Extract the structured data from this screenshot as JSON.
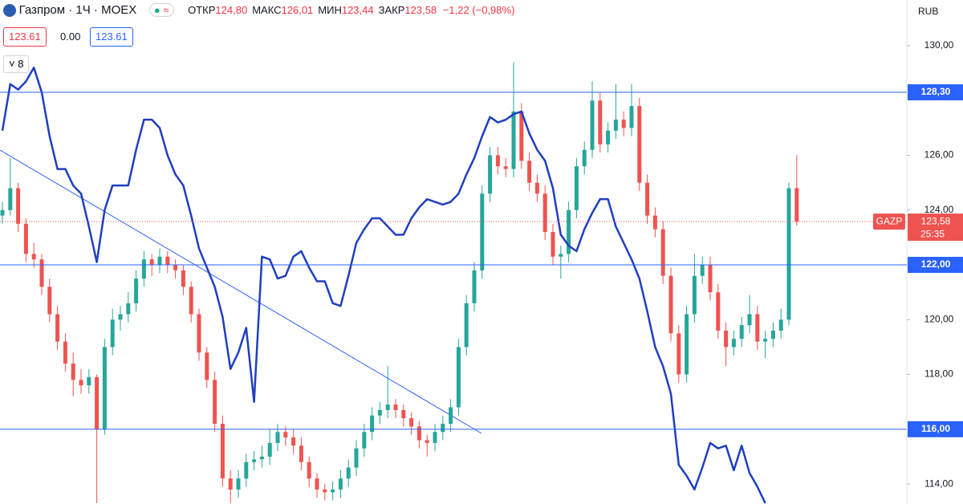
{
  "chart_data": {
    "type": "candlestick",
    "symbol": "Газпром · 1Ч · MOEX",
    "ohlc_legend": [
      {
        "label": "ОТКР",
        "value": "124,80"
      },
      {
        "label": "МАКС",
        "value": "126,01"
      },
      {
        "label": "МИН",
        "value": "123,44"
      },
      {
        "label": "ЗАКР",
        "value": "123,58"
      }
    ],
    "change": "−1,22 (−0,98%)",
    "bid": "123.61",
    "spread": "0.00",
    "ask": "123.61",
    "indicators_count": "8",
    "currency": "RUB",
    "symbol_tag": "GAZP",
    "countdown": "25:35",
    "last_price": {
      "value": 123.58,
      "label": "123,58"
    },
    "up_color": "#26a69a",
    "down_color": "#ef5350",
    "ylim": [
      113.27,
      131.67
    ],
    "yticks": [
      {
        "value": 114,
        "label": "114,00"
      },
      {
        "value": 118,
        "label": "118,00"
      },
      {
        "value": 120,
        "label": "120,00"
      },
      {
        "value": 124,
        "label": "124,00"
      },
      {
        "value": 126,
        "label": "126,00"
      },
      {
        "value": 130,
        "label": "130,00"
      }
    ],
    "levels": [
      {
        "value": 128.3,
        "label": "128,30"
      },
      {
        "value": 122,
        "label": "122,00"
      },
      {
        "value": 116,
        "label": "116,00"
      }
    ],
    "level_color": "#2962ff",
    "candles": [
      [
        123.8,
        124.3,
        123.5,
        124.0
      ],
      [
        124.0,
        125.9,
        123.8,
        124.8
      ],
      [
        124.8,
        125.0,
        123.2,
        123.5
      ],
      [
        123.5,
        123.7,
        122.1,
        122.4
      ],
      [
        122.4,
        122.8,
        121.9,
        122.2
      ],
      [
        122.2,
        122.4,
        120.9,
        121.2
      ],
      [
        121.2,
        121.5,
        119.9,
        120.2
      ],
      [
        120.2,
        120.5,
        118.9,
        119.2
      ],
      [
        119.2,
        119.5,
        118.1,
        118.4
      ],
      [
        118.4,
        118.8,
        117.2,
        117.8
      ],
      [
        117.8,
        118.2,
        117.3,
        117.6
      ],
      [
        117.6,
        118.2,
        117.3,
        117.9
      ],
      [
        117.9,
        118.0,
        113.3,
        116.0
      ],
      [
        116.0,
        119.3,
        115.8,
        119.0
      ],
      [
        119.0,
        120.4,
        118.7,
        120.0
      ],
      [
        120.0,
        120.5,
        119.6,
        120.2
      ],
      [
        120.2,
        121.0,
        119.9,
        120.6
      ],
      [
        120.6,
        121.8,
        120.3,
        121.5
      ],
      [
        121.5,
        122.5,
        121.2,
        122.2
      ],
      [
        122.2,
        122.4,
        121.6,
        122.0
      ],
      [
        122.0,
        122.6,
        121.7,
        122.3
      ],
      [
        122.3,
        122.5,
        121.7,
        122.0
      ],
      [
        122.0,
        122.2,
        121.5,
        121.8
      ],
      [
        121.8,
        122.0,
        120.9,
        121.2
      ],
      [
        121.2,
        121.4,
        119.9,
        120.2
      ],
      [
        120.2,
        120.4,
        118.5,
        118.8
      ],
      [
        118.8,
        119.0,
        117.5,
        117.8
      ],
      [
        117.8,
        118.1,
        115.9,
        116.2
      ],
      [
        116.2,
        116.5,
        113.9,
        114.2
      ],
      [
        114.2,
        114.5,
        113.3,
        113.8
      ],
      [
        113.8,
        114.5,
        113.5,
        114.2
      ],
      [
        114.2,
        115.1,
        113.9,
        114.8
      ],
      [
        114.8,
        115.2,
        114.5,
        114.9
      ],
      [
        114.9,
        115.4,
        114.6,
        115.0
      ],
      [
        115.0,
        116.0,
        114.7,
        115.5
      ],
      [
        115.5,
        116.2,
        115.2,
        115.9
      ],
      [
        115.9,
        116.1,
        115.4,
        115.7
      ],
      [
        115.7,
        116.0,
        115.1,
        115.4
      ],
      [
        115.4,
        115.7,
        114.5,
        114.8
      ],
      [
        114.8,
        115.0,
        113.9,
        114.2
      ],
      [
        114.2,
        114.4,
        113.5,
        113.8
      ],
      [
        113.8,
        114.0,
        113.4,
        113.7
      ],
      [
        113.7,
        114.1,
        113.4,
        113.8
      ],
      [
        113.8,
        114.5,
        113.5,
        114.2
      ],
      [
        114.2,
        114.9,
        113.9,
        114.6
      ],
      [
        114.6,
        115.6,
        114.3,
        115.3
      ],
      [
        115.3,
        116.2,
        115.0,
        115.9
      ],
      [
        115.9,
        116.8,
        115.6,
        116.5
      ],
      [
        116.5,
        117.0,
        116.2,
        116.7
      ],
      [
        116.7,
        118.3,
        116.4,
        116.9
      ],
      [
        116.9,
        117.1,
        116.4,
        116.7
      ],
      [
        116.7,
        116.9,
        116.1,
        116.4
      ],
      [
        116.4,
        116.6,
        115.8,
        116.1
      ],
      [
        116.1,
        116.3,
        115.3,
        115.6
      ],
      [
        115.6,
        115.8,
        115.0,
        115.5
      ],
      [
        115.5,
        116.2,
        115.2,
        115.9
      ],
      [
        115.9,
        116.5,
        115.6,
        116.2
      ],
      [
        116.2,
        117.1,
        115.9,
        116.8
      ],
      [
        116.8,
        119.3,
        116.5,
        119.0
      ],
      [
        119.0,
        120.9,
        118.7,
        120.6
      ],
      [
        120.6,
        122.1,
        120.3,
        121.8
      ],
      [
        121.8,
        124.9,
        121.5,
        124.6
      ],
      [
        124.6,
        126.3,
        124.3,
        126.0
      ],
      [
        126.0,
        126.3,
        125.3,
        125.6
      ],
      [
        125.6,
        125.9,
        125.2,
        125.5
      ],
      [
        125.5,
        129.4,
        125.2,
        127.6
      ],
      [
        127.6,
        127.9,
        125.5,
        125.8
      ],
      [
        125.8,
        126.1,
        124.7,
        125.0
      ],
      [
        125.0,
        125.3,
        124.3,
        124.6
      ],
      [
        124.6,
        124.9,
        122.9,
        123.2
      ],
      [
        123.2,
        123.5,
        122.0,
        122.3
      ],
      [
        122.3,
        122.7,
        121.5,
        122.4
      ],
      [
        122.4,
        124.3,
        122.1,
        124.0
      ],
      [
        124.0,
        125.9,
        123.7,
        125.6
      ],
      [
        125.6,
        126.5,
        125.3,
        126.2
      ],
      [
        126.2,
        128.7,
        125.9,
        128.0
      ],
      [
        128.0,
        128.3,
        126.1,
        126.4
      ],
      [
        126.4,
        127.2,
        126.1,
        126.9
      ],
      [
        126.9,
        128.6,
        126.6,
        127.3
      ],
      [
        127.3,
        127.6,
        126.7,
        127.0
      ],
      [
        127.0,
        128.6,
        126.7,
        127.8
      ],
      [
        127.8,
        128.1,
        124.7,
        125.0
      ],
      [
        125.0,
        125.3,
        123.5,
        123.8
      ],
      [
        123.8,
        124.1,
        123.0,
        123.3
      ],
      [
        123.3,
        123.6,
        121.3,
        121.6
      ],
      [
        121.6,
        121.9,
        119.2,
        119.5
      ],
      [
        119.5,
        119.8,
        117.7,
        118.0
      ],
      [
        118.0,
        120.5,
        117.7,
        120.2
      ],
      [
        120.2,
        122.4,
        119.9,
        121.6
      ],
      [
        121.6,
        122.3,
        121.3,
        122.0
      ],
      [
        122.0,
        122.3,
        120.7,
        121.0
      ],
      [
        121.0,
        121.3,
        119.3,
        119.6
      ],
      [
        119.6,
        119.9,
        118.3,
        119.0
      ],
      [
        119.0,
        119.6,
        118.7,
        119.3
      ],
      [
        119.3,
        120.1,
        119.0,
        119.8
      ],
      [
        119.8,
        120.9,
        119.5,
        120.2
      ],
      [
        120.2,
        120.5,
        118.9,
        119.2
      ],
      [
        119.2,
        119.6,
        118.6,
        119.3
      ],
      [
        119.3,
        119.9,
        119.0,
        119.6
      ],
      [
        119.6,
        120.4,
        119.3,
        120.0
      ],
      [
        120.0,
        125.0,
        119.8,
        124.8
      ],
      [
        124.8,
        126.01,
        123.44,
        123.58
      ]
    ],
    "line": {
      "color": "#1f3fbf",
      "values": [
        126.9,
        128.6,
        128.4,
        128.7,
        129.2,
        128.3,
        126.7,
        125.5,
        125.5,
        124.9,
        124.6,
        123.4,
        122.1,
        124.0,
        124.9,
        124.9,
        124.9,
        126.2,
        127.3,
        127.3,
        127.0,
        126.0,
        125.3,
        124.9,
        123.8,
        122.6,
        121.9,
        121.2,
        120.1,
        118.2,
        118.8,
        119.7,
        117.0,
        122.3,
        122.2,
        121.5,
        121.6,
        122.3,
        122.5,
        121.9,
        121.4,
        121.4,
        120.6,
        120.5,
        121.6,
        122.8,
        123.3,
        123.7,
        123.7,
        123.4,
        123.1,
        123.1,
        123.7,
        124.1,
        124.4,
        124.3,
        124.2,
        124.3,
        124.6,
        125.3,
        125.9,
        126.7,
        127.4,
        127.2,
        127.3,
        127.5,
        127.6,
        126.8,
        126.2,
        125.8,
        124.8,
        123.1,
        122.7,
        122.5,
        123.3,
        123.9,
        124.4,
        124.4,
        123.4,
        122.8,
        122.2,
        121.5,
        120.3,
        119.0,
        118.3,
        117.3,
        114.7,
        114.3,
        113.8,
        114.6,
        115.5,
        115.3,
        115.4,
        114.5,
        115.4,
        114.4,
        113.9,
        113.3,
        null,
        null,
        null,
        null
      ]
    }
  }
}
